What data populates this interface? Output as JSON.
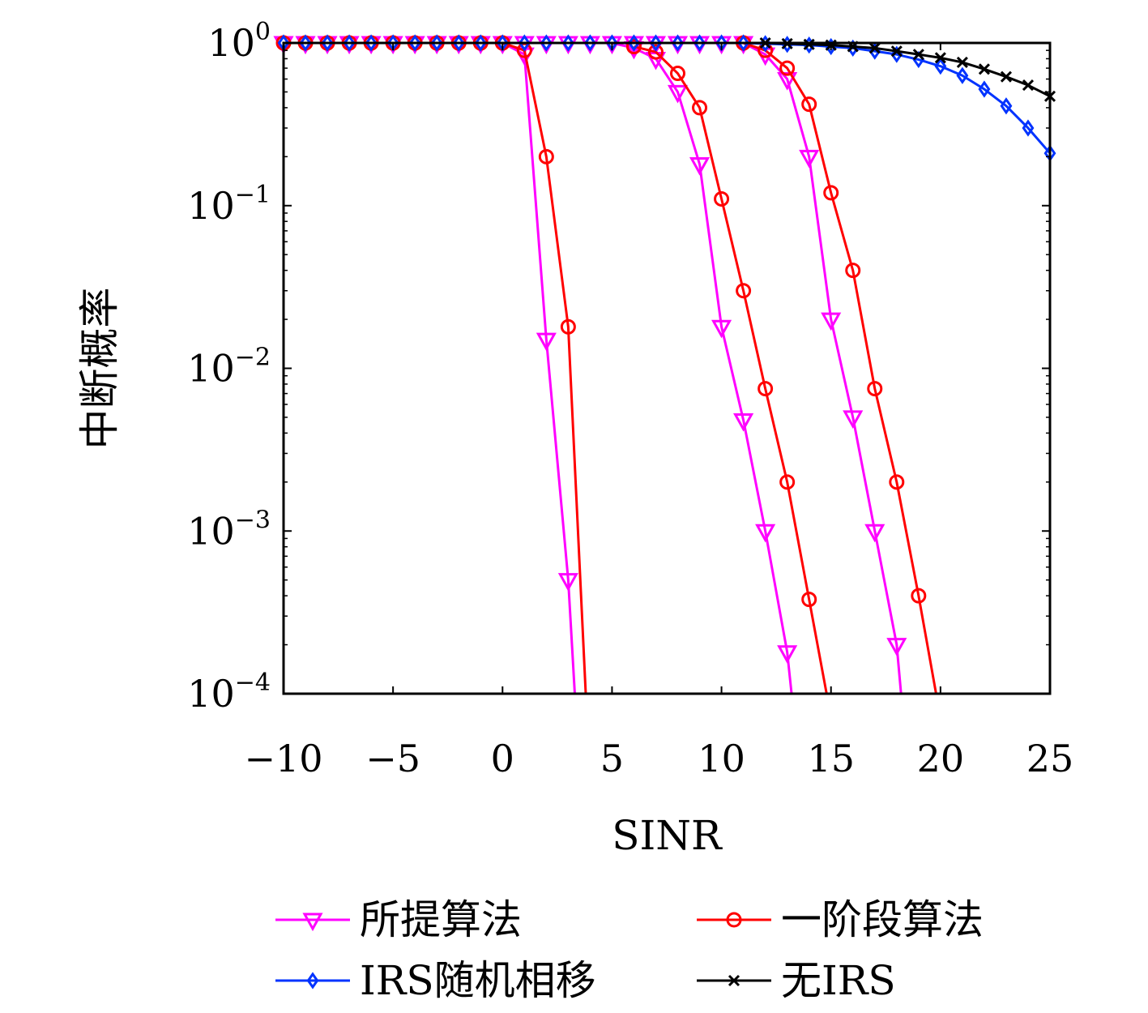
{
  "chart_data": {
    "type": "line",
    "title": "",
    "xlabel": "SINR",
    "ylabel": "中断概率",
    "xscale": "linear",
    "yscale": "log",
    "xlim": [
      -10,
      25
    ],
    "ylim": [
      0.0001,
      1
    ],
    "xticks": [
      -10,
      -5,
      0,
      5,
      10,
      15,
      20,
      25
    ],
    "xtick_labels": [
      "−10",
      "−5",
      "0",
      "5",
      "10",
      "15",
      "20",
      "25"
    ],
    "yticks": [
      {
        "value": 1,
        "base": "10",
        "exp": "0"
      },
      {
        "value": 0.1,
        "base": "10",
        "exp": "−1"
      },
      {
        "value": 0.01,
        "base": "10",
        "exp": "−2"
      },
      {
        "value": 0.001,
        "base": "10",
        "exp": "−3"
      },
      {
        "value": 0.0001,
        "base": "10",
        "exp": "−4"
      }
    ],
    "grid": false,
    "legend_position": "bottom",
    "series": [
      {
        "name": "所提算法",
        "color": "#ff00ff",
        "marker": "triangle-down",
        "points": [
          [
            -10,
            1
          ],
          [
            -9,
            1
          ],
          [
            -8,
            1
          ],
          [
            -7,
            1
          ],
          [
            -6,
            1
          ],
          [
            -5,
            1
          ],
          [
            -4,
            1
          ],
          [
            -3,
            1
          ],
          [
            -2,
            1
          ],
          [
            -1,
            1
          ],
          [
            0,
            1
          ],
          [
            1,
            0.85
          ],
          [
            2,
            0.015
          ],
          [
            3,
            0.0005
          ],
          [
            3.3,
            0.0001
          ]
        ],
        "marker_x": [
          -10,
          -9,
          -8,
          -7,
          -6,
          -5,
          -4,
          -3,
          -2,
          -1,
          0,
          1,
          2,
          3
        ]
      },
      {
        "name": "所提算法",
        "color": "#ff00ff",
        "marker": "triangle-down",
        "points": [
          [
            1,
            1
          ],
          [
            2,
            1
          ],
          [
            3,
            1
          ],
          [
            4,
            1
          ],
          [
            5,
            1
          ],
          [
            6,
            0.93
          ],
          [
            7,
            0.8
          ],
          [
            8,
            0.5
          ],
          [
            9,
            0.18
          ],
          [
            10,
            0.018
          ],
          [
            11,
            0.0048
          ],
          [
            12,
            0.001
          ],
          [
            13,
            0.00018
          ],
          [
            13.2,
            0.0001
          ]
        ],
        "marker_x": [
          1,
          2,
          3,
          4,
          5,
          6,
          7,
          8,
          9,
          10,
          11,
          12,
          13
        ]
      },
      {
        "name": "所提算法",
        "color": "#ff00ff",
        "marker": "triangle-down",
        "points": [
          [
            6,
            1
          ],
          [
            7,
            1
          ],
          [
            8,
            1
          ],
          [
            9,
            1
          ],
          [
            10,
            1
          ],
          [
            11,
            1
          ],
          [
            12,
            0.85
          ],
          [
            13,
            0.6
          ],
          [
            14,
            0.2
          ],
          [
            15,
            0.02
          ],
          [
            16,
            0.005
          ],
          [
            17,
            0.001
          ],
          [
            18,
            0.0002
          ],
          [
            18.2,
            0.0001
          ]
        ],
        "marker_x": [
          6,
          7,
          8,
          9,
          10,
          11,
          12,
          13,
          14,
          15,
          16,
          17,
          18
        ]
      },
      {
        "name": "一阶段算法",
        "color": "#ff0000",
        "marker": "circle",
        "points": [
          [
            -10,
            1
          ],
          [
            -9,
            1
          ],
          [
            -8,
            1
          ],
          [
            -7,
            1
          ],
          [
            -6,
            1
          ],
          [
            -5,
            1
          ],
          [
            -4,
            1
          ],
          [
            -3,
            1
          ],
          [
            -2,
            1
          ],
          [
            -1,
            1
          ],
          [
            0,
            1
          ],
          [
            1,
            0.9
          ],
          [
            2,
            0.2
          ],
          [
            3,
            0.018
          ],
          [
            3.8,
            0.0001
          ]
        ],
        "marker_x": [
          -10,
          -9,
          -8,
          -7,
          -6,
          -5,
          -4,
          -3,
          -2,
          -1,
          0,
          1,
          2,
          3
        ]
      },
      {
        "name": "一阶段算法",
        "color": "#ff0000",
        "marker": "circle",
        "points": [
          [
            6,
            0.95
          ],
          [
            7,
            0.88
          ],
          [
            8,
            0.65
          ],
          [
            9,
            0.4
          ],
          [
            10,
            0.11
          ],
          [
            11,
            0.03
          ],
          [
            12,
            0.0075
          ],
          [
            13,
            0.002
          ],
          [
            14,
            0.00038
          ],
          [
            14.8,
            0.0001
          ]
        ],
        "marker_x": [
          6,
          7,
          8,
          9,
          10,
          11,
          12,
          13,
          14
        ]
      },
      {
        "name": "一阶段算法",
        "color": "#ff0000",
        "marker": "circle",
        "points": [
          [
            11,
            1
          ],
          [
            12,
            0.9
          ],
          [
            13,
            0.7
          ],
          [
            14,
            0.42
          ],
          [
            15,
            0.12
          ],
          [
            16,
            0.04
          ],
          [
            17,
            0.0075
          ],
          [
            18,
            0.002
          ],
          [
            19,
            0.0004
          ],
          [
            19.8,
            0.0001
          ]
        ],
        "marker_x": [
          11,
          12,
          13,
          14,
          15,
          16,
          17,
          18,
          19
        ]
      },
      {
        "name": "IRS随机相移",
        "color": "#0033ff",
        "marker": "diamond",
        "points": [
          [
            -10,
            1
          ],
          [
            -9,
            1
          ],
          [
            -8,
            1
          ],
          [
            -7,
            1
          ],
          [
            -6,
            1
          ],
          [
            -5,
            1
          ],
          [
            -4,
            1
          ],
          [
            -3,
            1
          ],
          [
            -2,
            1
          ],
          [
            -1,
            1
          ],
          [
            0,
            1
          ],
          [
            1,
            1
          ],
          [
            2,
            1
          ],
          [
            3,
            1
          ],
          [
            4,
            1
          ],
          [
            5,
            1
          ],
          [
            6,
            1
          ],
          [
            7,
            1
          ],
          [
            8,
            1
          ],
          [
            9,
            1
          ],
          [
            10,
            1
          ],
          [
            11,
            1
          ],
          [
            12,
            0.99
          ],
          [
            13,
            0.98
          ],
          [
            14,
            0.97
          ],
          [
            15,
            0.95
          ],
          [
            16,
            0.93
          ],
          [
            17,
            0.89
          ],
          [
            18,
            0.85
          ],
          [
            19,
            0.79
          ],
          [
            20,
            0.72
          ],
          [
            21,
            0.63
          ],
          [
            22,
            0.52
          ],
          [
            23,
            0.41
          ],
          [
            24,
            0.3
          ],
          [
            25,
            0.21
          ]
        ],
        "marker_x": "all"
      },
      {
        "name": "无IRS",
        "color": "#000000",
        "marker": "x",
        "points": [
          [
            12,
            1
          ],
          [
            13,
            0.99
          ],
          [
            14,
            0.98
          ],
          [
            15,
            0.97
          ],
          [
            16,
            0.95
          ],
          [
            17,
            0.93
          ],
          [
            18,
            0.89
          ],
          [
            19,
            0.85
          ],
          [
            20,
            0.81
          ],
          [
            21,
            0.76
          ],
          [
            22,
            0.69
          ],
          [
            23,
            0.62
          ],
          [
            24,
            0.55
          ],
          [
            25,
            0.47
          ]
        ],
        "marker_x": "all"
      }
    ],
    "legend": [
      {
        "label": "所提算法",
        "color": "#ff00ff",
        "marker": "triangle-down"
      },
      {
        "label": "一阶段算法",
        "color": "#ff0000",
        "marker": "circle"
      },
      {
        "label": "IRS随机相移",
        "color": "#0033ff",
        "marker": "diamond"
      },
      {
        "label": "无IRS",
        "color": "#000000",
        "marker": "x"
      }
    ]
  }
}
